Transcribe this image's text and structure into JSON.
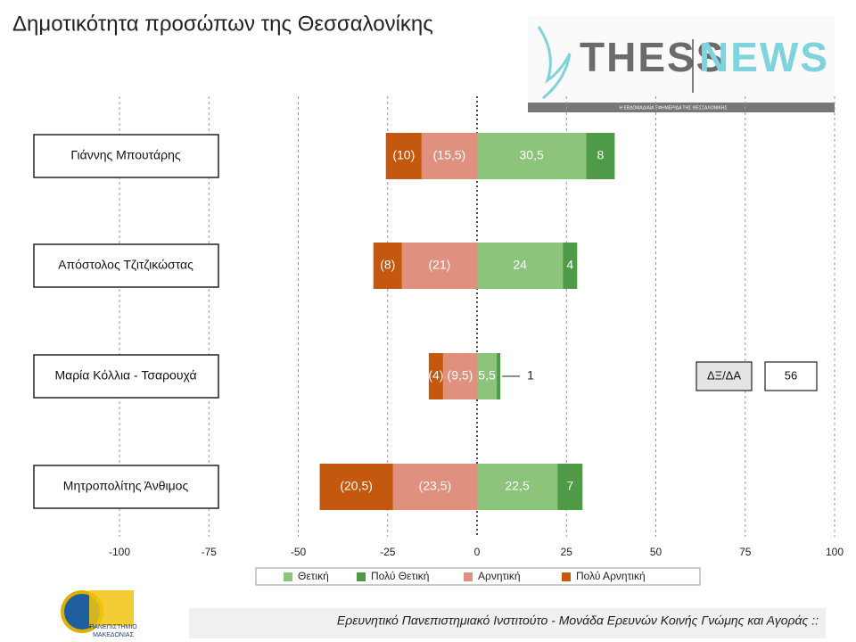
{
  "chart_data": {
    "type": "bar",
    "orientation": "horizontal",
    "stacking": "diverging",
    "title": "Δημοτικότητα προσώπων της Θεσσαλονίκης",
    "categories": [
      "Γιάννης Μπουτάρης",
      "Απόστολος Τζιτζικώστας",
      "Μαρία Κόλλια - Τσαρουχά",
      "Μητροπολίτης Άνθιμος"
    ],
    "series": [
      {
        "name": "Θετική",
        "color": "#8dc47c",
        "values": [
          30.5,
          24,
          5.5,
          22.5
        ],
        "value_labels": [
          "30,5",
          "24",
          "5,5",
          "22,5"
        ]
      },
      {
        "name": "Πολύ Θετική",
        "color": "#4f9a47",
        "values": [
          8,
          4,
          1,
          7
        ]
      },
      {
        "name": "Αρνητική",
        "color": "#e0907f",
        "values": [
          -15.5,
          -21,
          -9.5,
          -23.5
        ],
        "value_labels": [
          "(15,5)",
          "(21)",
          "(9,5)",
          "(23,5)"
        ]
      },
      {
        "name": "Πολύ Αρνητική",
        "color": "#c4580f",
        "values": [
          -10,
          -8,
          -4,
          -20.5
        ],
        "value_labels": [
          "(10)",
          "(8)",
          "(4)",
          "(20,5)"
        ]
      }
    ],
    "xlim": [
      -100,
      100
    ],
    "xticks": [
      -100,
      -75,
      -50,
      -25,
      0,
      25,
      50,
      75,
      100
    ],
    "grid": true,
    "legend": "bottom",
    "annotation": {
      "label": "ΔΞ/ΔΑ",
      "value": 56
    }
  },
  "logo": {
    "left": "THESS",
    "right": "NEWS",
    "tagline": "Η ΕΒΔΟΜΑΔΙΑΙΑ ΕΦΗΜΕΡΙΔΑ ΤΗΣ ΘΕΣΣΑΛΟΝΙΚΗΣ"
  },
  "university": {
    "line1": "ΠΑΝΕΠΙΣΤΗΜΙΟ",
    "line2": "ΜΑΚΕΔΟΝΙΑΣ"
  },
  "footer": "Ερευνητικό Πανεπιστημιακό Ινστιτούτο - Μονάδα Ερευνών Κοινής Γνώμης και Αγοράς ::"
}
